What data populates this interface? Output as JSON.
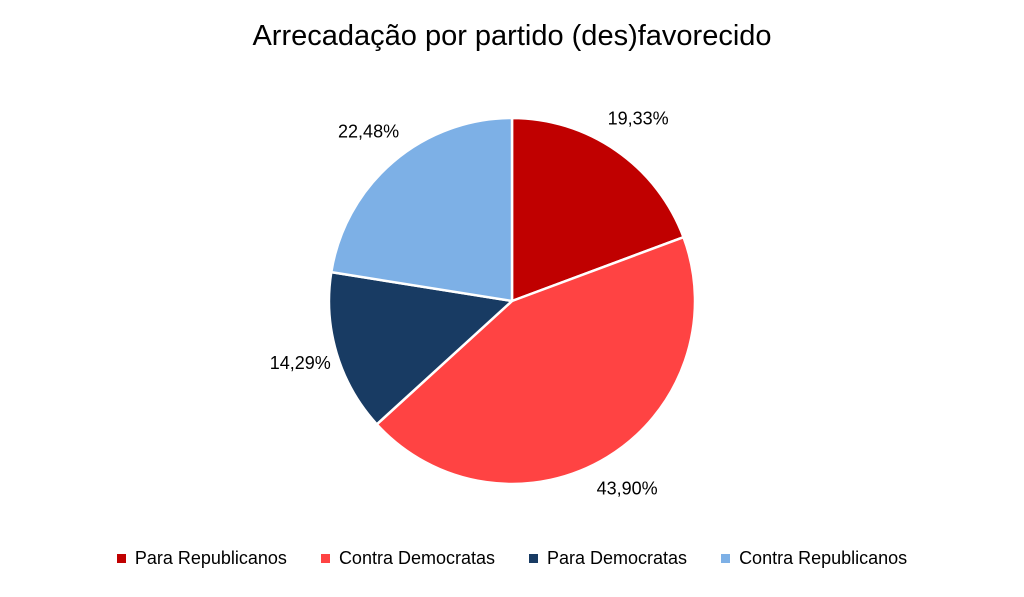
{
  "chart_data": {
    "type": "pie",
    "title": "Arrecadação por partido (des)favorecido",
    "slices": [
      {
        "name": "Para Republicanos",
        "value": 19.33,
        "label": "19,33%",
        "color": "#C00000"
      },
      {
        "name": "Contra Democratas",
        "value": 43.9,
        "label": "43,90%",
        "color": "#FF4343"
      },
      {
        "name": "Para Democratas",
        "value": 14.29,
        "label": "14,29%",
        "color": "#183B63"
      },
      {
        "name": "Contra Republicanos",
        "value": 22.48,
        "label": "22,48%",
        "color": "#7DB0E6"
      }
    ],
    "legend_position": "bottom",
    "start_angle": "12 o'clock",
    "direction": "clockwise"
  }
}
